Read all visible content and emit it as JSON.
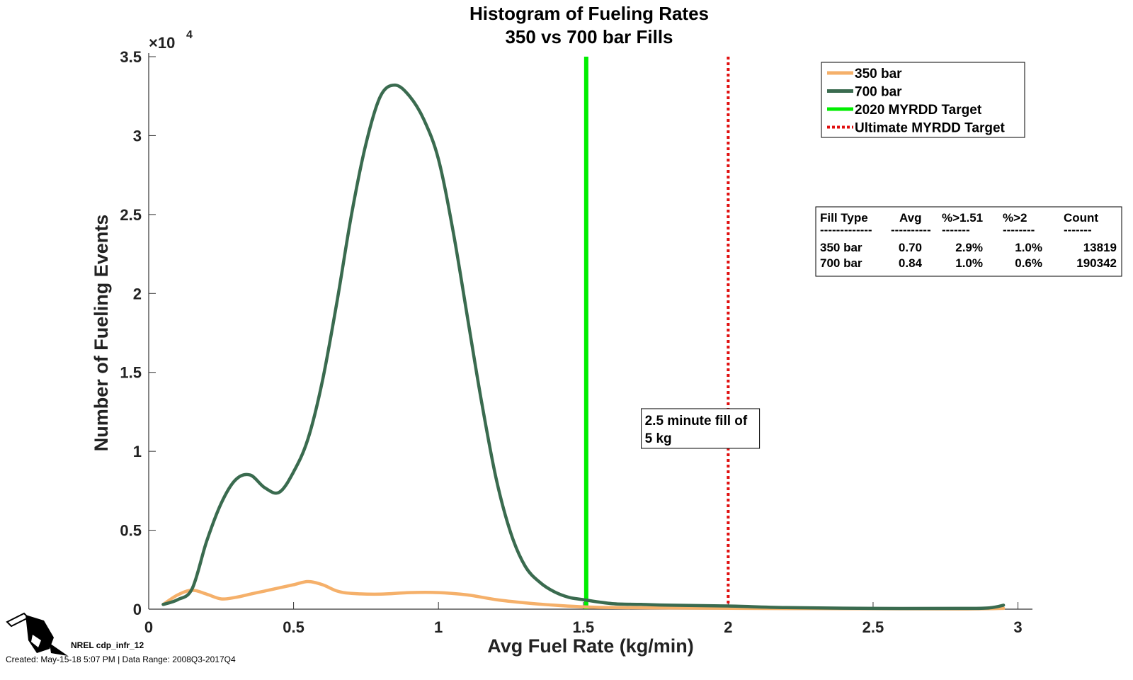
{
  "footer": {
    "id_text": "NREL cdp_infr_12",
    "created_text": "Created: May-15-18  5:07 PM | Data Range: 2008Q3-2017Q4"
  },
  "chart_data": {
    "type": "line",
    "title": [
      "Histogram of Fueling Rates",
      "350 vs 700 bar Fills"
    ],
    "xlabel": "Avg Fuel Rate (kg/min)",
    "ylabel": "Number of Fueling Events",
    "y_exponent_label": {
      "base": "×10",
      "exp": "4"
    },
    "xlim": [
      0,
      3.05
    ],
    "ylim": [
      0,
      35000
    ],
    "xticks": [
      0,
      0.5,
      1,
      1.5,
      2,
      2.5,
      3
    ],
    "xtick_labels": [
      "0",
      "0.5",
      "1",
      "1.5",
      "2",
      "2.5",
      "3"
    ],
    "yticks": [
      0,
      5000,
      10000,
      15000,
      20000,
      25000,
      30000,
      35000
    ],
    "ytick_labels": [
      "0",
      "0.5",
      "1",
      "1.5",
      "2",
      "2.5",
      "3",
      "3.5"
    ],
    "grid": false,
    "legend_position": "top-right",
    "series": [
      {
        "name": "350 bar",
        "color": "#f5b06a",
        "style": "solid",
        "x": [
          0.05,
          0.1,
          0.15,
          0.2,
          0.25,
          0.3,
          0.35,
          0.4,
          0.45,
          0.5,
          0.55,
          0.6,
          0.65,
          0.7,
          0.8,
          0.9,
          1.0,
          1.1,
          1.2,
          1.3,
          1.4,
          1.5,
          1.6,
          1.8,
          2.0,
          2.2,
          2.5,
          2.8,
          2.95
        ],
        "y": [
          300,
          900,
          1200,
          950,
          650,
          750,
          950,
          1150,
          1350,
          1550,
          1750,
          1550,
          1150,
          1000,
          950,
          1050,
          1050,
          900,
          600,
          400,
          250,
          150,
          100,
          80,
          60,
          40,
          30,
          20,
          50
        ]
      },
      {
        "name": "700 bar",
        "color": "#3a6b4f",
        "style": "solid",
        "x": [
          0.05,
          0.1,
          0.15,
          0.2,
          0.25,
          0.3,
          0.35,
          0.4,
          0.45,
          0.5,
          0.55,
          0.6,
          0.65,
          0.7,
          0.75,
          0.8,
          0.85,
          0.9,
          0.95,
          1.0,
          1.05,
          1.1,
          1.15,
          1.2,
          1.25,
          1.3,
          1.35,
          1.4,
          1.45,
          1.5,
          1.6,
          1.7,
          1.8,
          2.0,
          2.2,
          2.5,
          2.8,
          2.9,
          2.95
        ],
        "y": [
          300,
          600,
          1300,
          4300,
          6700,
          8200,
          8500,
          7700,
          7400,
          8700,
          10800,
          14500,
          19500,
          25000,
          29500,
          32500,
          33200,
          32500,
          31000,
          28500,
          24000,
          18500,
          13000,
          8200,
          4800,
          2700,
          1700,
          1100,
          750,
          600,
          350,
          300,
          250,
          200,
          100,
          50,
          50,
          80,
          250
        ]
      }
    ],
    "reference_lines": [
      {
        "name": "2020 MYRDD Target",
        "x": 1.51,
        "color": "#00ee00",
        "style": "solid"
      },
      {
        "name": "Ultimate MYRDD Target",
        "x": 2.0,
        "color": "#e01010",
        "style": "dotted"
      }
    ],
    "annotation": {
      "lines": [
        "2.5 minute fill of",
        "5 kg"
      ],
      "x": 1.7,
      "y": 12700
    },
    "summary_table": {
      "columns": [
        "Fill Type",
        "Avg",
        "%>1.51",
        "%>2",
        "Count"
      ],
      "separators": [
        "-------------",
        "----------",
        "-------",
        "--------",
        "-------"
      ],
      "rows": [
        [
          "350 bar",
          "0.70",
          "2.9%",
          "1.0%",
          "13819"
        ],
        [
          "700 bar",
          "0.84",
          "1.0%",
          "0.6%",
          "190342"
        ]
      ]
    }
  }
}
